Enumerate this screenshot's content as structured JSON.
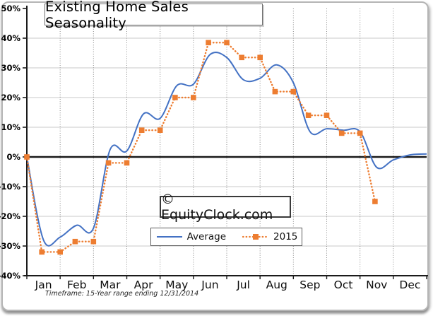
{
  "chart_data": {
    "type": "line",
    "title": "Existing Home Sales Seasonality",
    "watermark": "© EquityClock.com",
    "footnote": "Timeframe: 15-Year range ending 12/31/2014",
    "categories": [
      "Jan",
      "Feb",
      "Mar",
      "Apr",
      "May",
      "Jun",
      "Jul",
      "Aug",
      "Sep",
      "Oct",
      "Nov",
      "Dec"
    ],
    "y_tick_labels": [
      "50%",
      "40%",
      "30%",
      "20%",
      "10%",
      "0%",
      "-10%",
      "-20%",
      "-30%",
      "-40%"
    ],
    "y_tick_values": [
      50,
      40,
      30,
      20,
      10,
      0,
      -10,
      -20,
      -30,
      -40
    ],
    "ylim": [
      -40,
      50
    ],
    "xlim_month_units": [
      0,
      12
    ],
    "grid": {
      "horizontal": "solid-gray",
      "vertical": "dotted-dark",
      "zero_line": "bold-black"
    },
    "legend_position": "bottom-center-boxed",
    "colors": {
      "average": "#4472C4",
      "year2015": "#ED7D31",
      "grid_h": "#c9c9c9",
      "grid_v": "#8a8a8a",
      "axis": "#1a1a1a"
    },
    "series": [
      {
        "name": "Average",
        "style": "smooth-solid-line",
        "x": [
          0,
          0.5,
          1,
          1.5,
          2,
          2.5,
          3,
          3.5,
          4,
          4.5,
          5,
          5.5,
          6,
          6.5,
          7,
          7.5,
          8,
          8.5,
          9,
          9.5,
          10,
          10.5,
          11,
          11.5,
          12
        ],
        "values": [
          0,
          -28,
          -27,
          -23,
          -24,
          2.5,
          2,
          14.5,
          13,
          24,
          24.5,
          34.5,
          33.5,
          26,
          26.5,
          31,
          25,
          8.5,
          9.5,
          9,
          8.5,
          -3.5,
          -1,
          0.7,
          1
        ]
      },
      {
        "name": "2015",
        "style": "dotted-line-square-markers",
        "x": [
          0,
          0.45,
          1,
          1.45,
          2,
          2.45,
          3,
          3.45,
          4,
          4.45,
          5,
          5.45,
          6,
          6.45,
          7,
          7.45,
          8,
          8.45,
          9,
          9.45,
          10,
          10.45
        ],
        "values": [
          0,
          -32,
          -32,
          -28.5,
          -28.5,
          -2,
          -2,
          9,
          9,
          20,
          20,
          38.5,
          38.5,
          33.5,
          33.5,
          22,
          22,
          14,
          14,
          8,
          8,
          -15
        ]
      }
    ]
  }
}
